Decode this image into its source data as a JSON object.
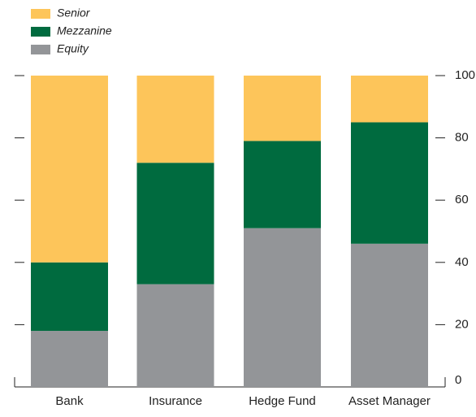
{
  "chart_data": {
    "type": "stacked_bar",
    "categories": [
      "Bank",
      "Insurance",
      "Hedge Fund",
      "Asset Manager"
    ],
    "series": [
      {
        "name": "Senior",
        "color": "#fdc55a",
        "values": [
          60,
          28,
          21,
          15
        ]
      },
      {
        "name": "Mezzanine",
        "color": "#006b3f",
        "values": [
          22,
          39,
          28,
          39
        ]
      },
      {
        "name": "Equity",
        "color": "#939598",
        "values": [
          18,
          33,
          51,
          46
        ]
      }
    ],
    "ylim": [
      0,
      100
    ],
    "yticks": [
      0,
      20,
      40,
      60,
      80,
      100
    ],
    "legend": "top-left"
  }
}
